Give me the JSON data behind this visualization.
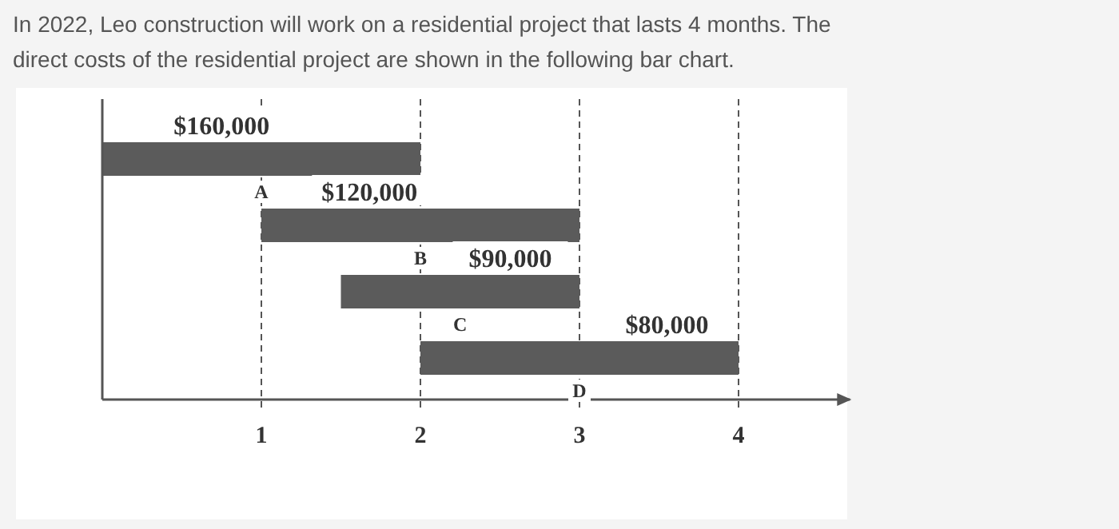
{
  "chart_data": {
    "type": "bar",
    "orientation": "horizontal",
    "title": "In 2022, Leo construction will work on a residential project that lasts 4 months. The direct costs of the residential project are shown in the following bar chart.",
    "categories": [
      null,
      null,
      null,
      null
    ],
    "values": [
      2,
      2,
      1.5,
      2
    ],
    "base": [
      0,
      1,
      1.5,
      2
    ],
    "color": "#5b5b5b",
    "xlim": [
      0,
      4.7
    ],
    "xticks": [
      1,
      2,
      3,
      4
    ],
    "grid": "x",
    "line_style": "dashed",
    "annotations": [
      "$160,000",
      "A",
      "$120,000",
      "B",
      "$90,000",
      "C",
      "$80,000",
      "D"
    ]
  }
}
